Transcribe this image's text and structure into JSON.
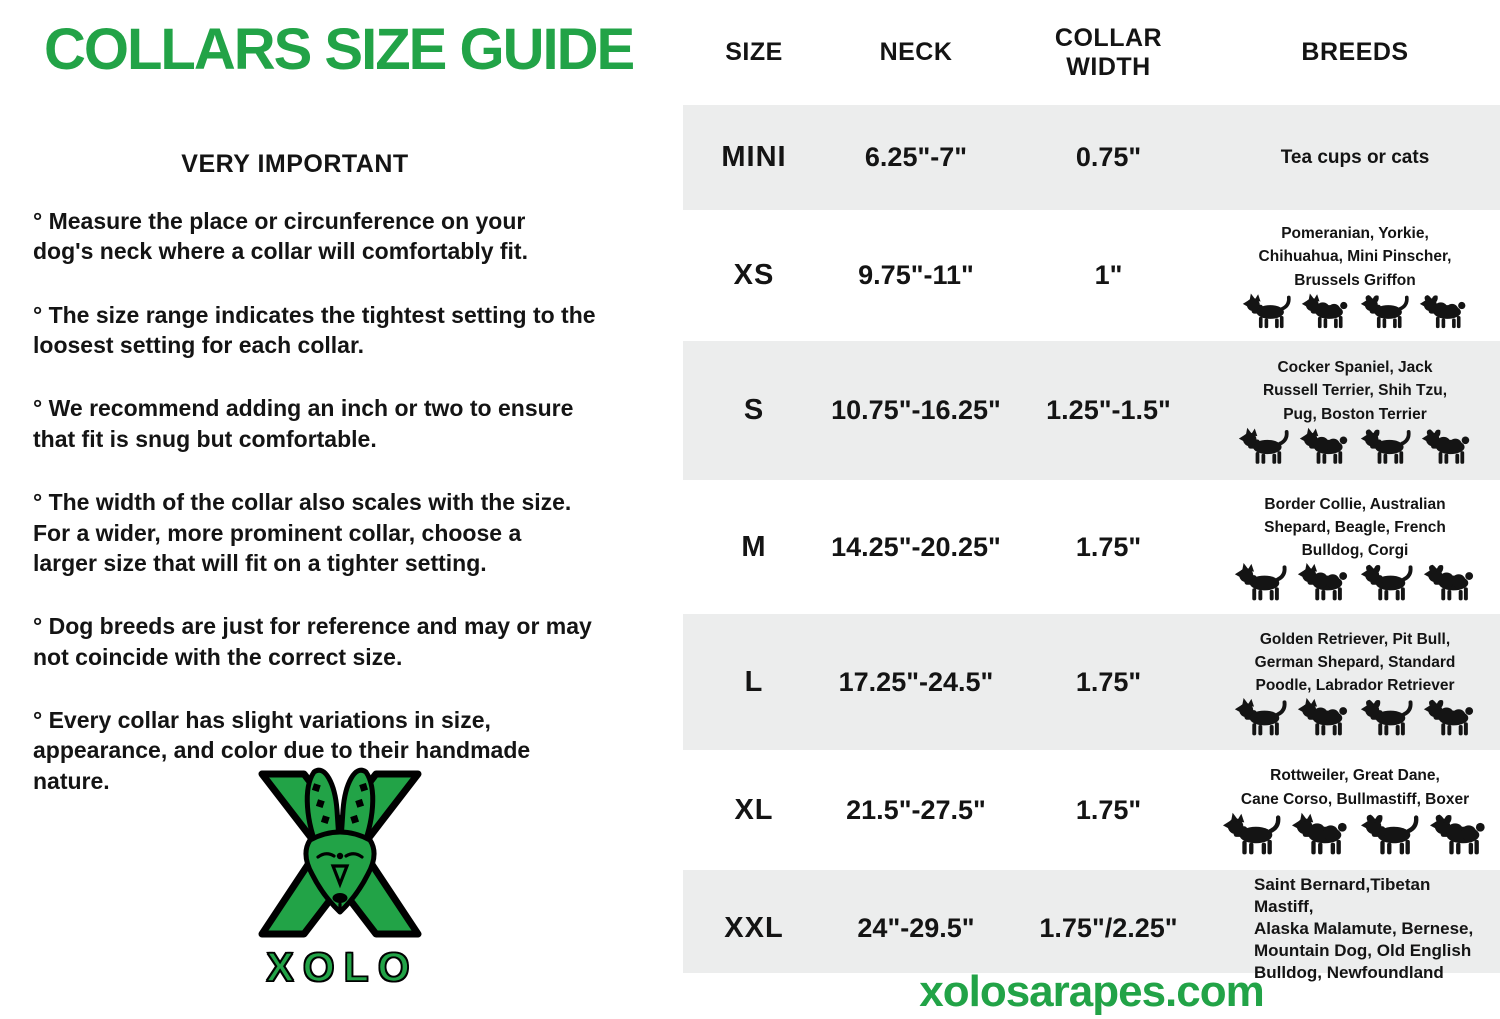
{
  "page": {
    "accent_green": "#22a347",
    "row_shade": "#eceded",
    "text_color": "#141414"
  },
  "left_panel": {
    "title": "COLLARS SIZE GUIDE",
    "subtitle": "VERY IMPORTANT",
    "bullets": [
      "° Measure the place or circunference on your\ndog's neck where a collar will comfortably fit.",
      "° The size range indicates the tightest setting to the\nloosest setting for each collar.",
      "° We recommend adding an inch or two to ensure\nthat fit is snug but comfortable.",
      "° The width of the collar also scales with the size.\nFor a wider, more prominent collar, choose a\nlarger size that will fit on a tighter setting.",
      "° Dog breeds are just for reference and may or may\nnot coincide with the correct size.",
      "° Every collar has slight variations in size,\nappearance, and color due to their handmade\nnature."
    ],
    "logo": {
      "brand": "XOLO",
      "icon": "xolo-dog-head-over-x"
    }
  },
  "table": {
    "headers": [
      "SIZE",
      "NECK",
      "COLLAR WIDTH",
      "BREEDS"
    ],
    "rows": [
      {
        "size": "MINI",
        "neck": "6.25\"-7\"",
        "width": "0.75\"",
        "breeds_lines": [
          "Tea cups or cats"
        ],
        "dog_icons": 0,
        "shaded": true
      },
      {
        "size": "XS",
        "neck": "9.75\"-11\"",
        "width": "1\"",
        "breeds_lines": [
          "Pomeranian, Yorkie,",
          "Chihuahua, Mini Pinscher,",
          "Brussels Griffon"
        ],
        "dog_icons": 4,
        "shaded": false
      },
      {
        "size": "S",
        "neck": "10.75\"-16.25\"",
        "width": "1.25\"-1.5\"",
        "breeds_lines": [
          "Cocker Spaniel, Jack",
          "Russell Terrier, Shih Tzu,",
          "Pug, Boston Terrier"
        ],
        "dog_icons": 4,
        "shaded": true
      },
      {
        "size": "M",
        "neck": "14.25\"-20.25\"",
        "width": "1.75\"",
        "breeds_lines": [
          "Border Collie, Australian",
          "Shepard, Beagle, French",
          "Bulldog, Corgi"
        ],
        "dog_icons": 4,
        "shaded": false
      },
      {
        "size": "L",
        "neck": "17.25\"-24.5\"",
        "width": "1.75\"",
        "breeds_lines": [
          "Golden Retriever, Pit Bull,",
          "German Shepard, Standard",
          "Poodle, Labrador Retriever"
        ],
        "dog_icons": 4,
        "shaded": true
      },
      {
        "size": "XL",
        "neck": "21.5\"-27.5\"",
        "width": "1.75\"",
        "breeds_lines": [
          "Rottweiler, Great Dane,",
          "Cane Corso, Bullmastiff, Boxer"
        ],
        "dog_icons": 4,
        "shaded": false
      },
      {
        "size": "XXL",
        "neck": "24\"-29.5\"",
        "width": "1.75\"/2.25\"",
        "breeds_lines": [
          "Saint Bernard,Tibetan Mastiff,",
          "Alaska Malamute, Bernese,",
          "Mountain Dog, Old English",
          "Bulldog, Newfoundland"
        ],
        "dog_icons": 0,
        "shaded": true,
        "align": "left"
      }
    ]
  },
  "footer": {
    "website": "xolosarapes.com"
  },
  "icons": {
    "dog_silhouette": "black standing-dog side profile",
    "xolo_logo": "green dog head over green X emblem"
  }
}
